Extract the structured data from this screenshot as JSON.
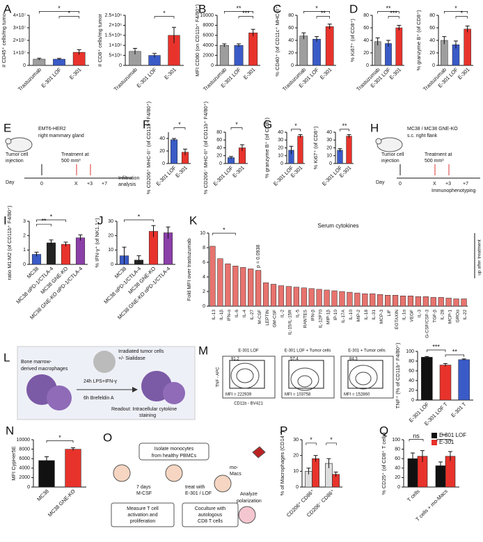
{
  "chart_data": [
    {
      "type": "bar",
      "panel": "A",
      "ylabel": "# CD45⁺ cells/mg tumo",
      "categories": [
        "Trastuzumab",
        "E-301 LOF",
        "E-301"
      ],
      "colors": [
        "#9e9e9e",
        "#3a5bc7",
        "#e8332c"
      ],
      "values": [
        5000000,
        5000000,
        10500000
      ],
      "errors": [
        700000,
        600000,
        2000000
      ],
      "ylim": [
        0,
        40000000
      ],
      "yticks": [
        0,
        {
          "value": 10000000,
          "label": "1×10⁷"
        },
        {
          "value": 20000000,
          "label": "2×10⁷"
        },
        {
          "value": 30000000,
          "label": "3×10⁷"
        },
        {
          "value": 40000000,
          "label": "4×10⁷"
        }
      ],
      "significance": [
        "*",
        "*"
      ]
    },
    {
      "type": "bar",
      "ylabel": "# CD8⁺ cells/mg tumor",
      "categories": [
        "Trastuzumab",
        "E-301 LOF",
        "E-301"
      ],
      "colors": [
        "#9e9e9e",
        "#3a5bc7",
        "#e8332c"
      ],
      "values": [
        700000,
        500000,
        1500000
      ],
      "errors": [
        150000,
        100000,
        400000
      ],
      "ylim": [
        0,
        2500000
      ],
      "yticks": [
        0,
        {
          "value": 500000,
          "label": "5×10⁵"
        },
        {
          "value": 1000000,
          "label": "1×10⁶"
        },
        {
          "value": 1500000,
          "label": "1.5×10⁶"
        },
        {
          "value": 2000000,
          "label": "2×10⁶"
        },
        {
          "value": 2500000,
          "label": "2.5×10⁶"
        }
      ],
      "significance": [
        "*"
      ]
    },
    {
      "type": "bar",
      "panel": "B",
      "ylabel": "MFI CD80 (on CD11b⁺ F4/80⁺)",
      "categories": [
        "Trastuzumab",
        "E-301 LOF",
        "E-301"
      ],
      "colors": [
        "#9e9e9e",
        "#3a5bc7",
        "#e8332c"
      ],
      "values": [
        4000,
        4000,
        6500
      ],
      "errors": [
        300,
        300,
        700
      ],
      "ylim": [
        0,
        10000
      ],
      "yticks": [
        0,
        2000,
        4000,
        6000,
        8000,
        10000
      ],
      "significance": [
        "**",
        "***"
      ]
    },
    {
      "type": "bar",
      "panel": "C",
      "ylabel": "% CD40⁺ (of CD11c⁺ MHC-II⁺)",
      "categories": [
        "Trastuzumab",
        "E-301 LOF",
        "E-301"
      ],
      "colors": [
        "#9e9e9e",
        "#3a5bc7",
        "#e8332c"
      ],
      "values": [
        47,
        42,
        62
      ],
      "errors": [
        5,
        4,
        4
      ],
      "ylim": [
        0,
        80
      ],
      "yticks": [
        0,
        20,
        40,
        60,
        80
      ],
      "significance": [
        "*",
        "**"
      ]
    },
    {
      "type": "bar",
      "panel": "D",
      "ylabel": "% Ki67⁺ (of CD8⁺)",
      "categories": [
        "Trastuzumab",
        "E-301 LOF",
        "E-301"
      ],
      "colors": [
        "#9e9e9e",
        "#3a5bc7",
        "#e8332c"
      ],
      "values": [
        38,
        35,
        60
      ],
      "errors": [
        6,
        5,
        4
      ],
      "ylim": [
        0,
        80
      ],
      "yticks": [
        0,
        20,
        40,
        60,
        80
      ],
      "significance": [
        "**",
        "***"
      ]
    },
    {
      "type": "bar",
      "ylabel": "% granzyme B⁺ (of CD8⁺)",
      "categories": [
        "Trastuzumab",
        "E-301 LOF",
        "E-301"
      ],
      "colors": [
        "#9e9e9e",
        "#3a5bc7",
        "#e8332c"
      ],
      "values": [
        40,
        33,
        58
      ],
      "errors": [
        6,
        6,
        5
      ],
      "ylim": [
        0,
        80
      ],
      "yticks": [
        0,
        20,
        40,
        60,
        80
      ],
      "significance": [
        "*",
        "*"
      ]
    },
    {
      "type": "bar",
      "panel": "F",
      "ylabel": "% CD206⁺ MHC-II⁻ (of CD11b⁺ F4/80⁺)",
      "categories": [
        "E-301 LOF",
        "E-301"
      ],
      "colors": [
        "#3a5bc7",
        "#e8332c"
      ],
      "values": [
        38,
        18
      ],
      "errors": [
        2,
        5
      ],
      "ylim": [
        0,
        50
      ],
      "yticks": [
        0,
        20,
        40
      ],
      "significance": [
        "*"
      ]
    },
    {
      "type": "bar",
      "ylabel": "% CD206⁻ MHC-II⁺ (of CD11b⁺ F4/80⁺)",
      "categories": [
        "E-301 LOF",
        "E-301"
      ],
      "colors": [
        "#3a5bc7",
        "#e8332c"
      ],
      "values": [
        15,
        40
      ],
      "errors": [
        3,
        8
      ],
      "ylim": [
        0,
        80
      ],
      "yticks": [
        0,
        20,
        40,
        60,
        80
      ],
      "significance": [
        "*"
      ]
    },
    {
      "type": "bar",
      "panel": "G",
      "ylabel": "% granzyme B⁺ (of CD8⁺)",
      "categories": [
        "E-301 LOF",
        "E-301"
      ],
      "colors": [
        "#3a5bc7",
        "#e8332c"
      ],
      "values": [
        17,
        35
      ],
      "errors": [
        5,
        2
      ],
      "ylim": [
        0,
        40
      ],
      "yticks": [
        0,
        10,
        20,
        30,
        40
      ],
      "significance": [
        "*"
      ]
    },
    {
      "type": "bar",
      "ylabel": "% Ki67⁺ (of CD8⁺)",
      "categories": [
        "E-301 LOF",
        "E-301"
      ],
      "colors": [
        "#3a5bc7",
        "#e8332c"
      ],
      "values": [
        17,
        35
      ],
      "errors": [
        2,
        2
      ],
      "ylim": [
        0,
        40
      ],
      "yticks": [
        0,
        10,
        20,
        30,
        40
      ],
      "significance": [
        "**"
      ]
    },
    {
      "type": "bar",
      "panel": "I",
      "ylabel": "ratio M1:M2 (of CD11b⁺ F4/80⁺)",
      "categories": [
        "MC38",
        "MC38 αPD-1/CTLA-4",
        "MC38 GNE-KO",
        "MC38 GNE-KO αPD-1/CTLA-4"
      ],
      "colors": [
        "#3a5bc7",
        "#222222",
        "#e8332c",
        "#8b3fa8"
      ],
      "values": [
        0.7,
        1.5,
        1.4,
        1.85
      ],
      "errors": [
        0.15,
        0.2,
        0.15,
        0.2
      ],
      "ylim": [
        0,
        3
      ],
      "yticks": [
        0,
        1,
        2,
        3
      ],
      "significance": [
        "**",
        "*"
      ]
    },
    {
      "type": "bar",
      "panel": "J",
      "ylabel": "% IFN-γ⁺ (of NK1.1⁺)",
      "categories": [
        "MC38",
        "MC38 αPD-1/CTLA-4",
        "MC38 GNE-KO",
        "MC38 GNE-KO αPD-1/CTLA-4"
      ],
      "colors": [
        "#3a5bc7",
        "#222222",
        "#e8332c",
        "#8b3fa8"
      ],
      "values": [
        6,
        3,
        23,
        22
      ],
      "errors": [
        6,
        3,
        4,
        4
      ],
      "ylim": [
        0,
        30
      ],
      "yticks": [
        0,
        10,
        20,
        30
      ],
      "significance": [
        "*"
      ]
    },
    {
      "type": "bar",
      "panel": "K",
      "title": "Serum cytokines",
      "ylabel": "Fold MFI over trastuzumab",
      "note": "p = 0.0938",
      "side_note": "up after treatment",
      "categories": [
        "IL-13",
        "IL-1β",
        "IFN-α",
        "IL-6",
        "IL-4",
        "IL-27",
        "M-CSF",
        "LEPTIN",
        "GM-CSF",
        "IL-2",
        "IL-15/IL-15R",
        "IL-5",
        "RANTES",
        "IFN-β",
        "IL-12P70",
        "MIP-1β",
        "IP-10",
        "IL-17A",
        "IL-10",
        "MIP-2",
        "IL-18",
        "IL-31",
        "MCP-3",
        "LIF",
        "EOTAXIN",
        "IL-1α",
        "VEGF",
        "IL-3",
        "G-CSF/CSF-3",
        "TGF-β",
        "IL-28",
        "MCP-1",
        "GROα",
        "IL-22"
      ],
      "color": "#e8736e",
      "values": [
        8.2,
        6.5,
        5.8,
        5.5,
        5.3,
        5.1,
        4.9,
        3.2,
        3,
        2.8,
        2.7,
        2.6,
        2.5,
        2.4,
        2.3,
        2.2,
        2.1,
        2,
        1.9,
        1.8,
        1.7,
        1.7,
        1.6,
        1.5,
        1.5,
        1.4,
        1.4,
        1.3,
        1.3,
        1.2,
        1.2,
        1.1,
        1,
        1
      ],
      "ylim": [
        0,
        10
      ],
      "yticks": [
        0,
        2,
        4,
        6,
        8,
        10
      ],
      "significance": [
        "*"
      ]
    },
    {
      "type": "bar",
      "panel": "M",
      "ylabel": "TNF⁺ (% of CD11b⁺ F4/80⁺)",
      "categories": [
        "E-301 LOF",
        "E-301 LOF T",
        "E-301 T"
      ],
      "colors": [
        "#111111",
        "#e8332c",
        "#3a5bc7"
      ],
      "values": [
        88,
        72,
        83
      ],
      "errors": [
        1.5,
        3,
        1.5
      ],
      "ylim": [
        0,
        100
      ],
      "yticks": [
        0,
        20,
        40,
        60,
        80,
        100
      ],
      "significance": [
        "***",
        "**"
      ]
    },
    {
      "type": "bar",
      "panel": "N",
      "ylabel": "MFI CypHer5E",
      "categories": [
        "MC38",
        "MC38 GNE-KO"
      ],
      "colors": [
        "#111111",
        "#e8332c"
      ],
      "values": [
        5600,
        8000
      ],
      "errors": [
        800,
        300
      ],
      "ylim": [
        0,
        10000
      ],
      "yticks": [
        0,
        2000,
        4000,
        6000,
        8000,
        10000
      ],
      "significance": [
        "*"
      ]
    },
    {
      "type": "bar",
      "panel": "P",
      "ylabel": "% of Macrophages (CD14⁺)",
      "categories": [
        "CD206⁺ CD86⁺",
        "CD206⁻ CD86⁺"
      ],
      "series": [
        {
          "color": "#dddddd",
          "values": [
            10,
            15
          ]
        },
        {
          "color": "#e8332c",
          "values": [
            18,
            8
          ]
        }
      ],
      "errors": [
        [
          2,
          3
        ],
        [
          2,
          1.5
        ]
      ],
      "ylim": [
        0,
        30
      ],
      "yticks": [
        0,
        10,
        20,
        30
      ],
      "significance": [
        "*",
        "*"
      ]
    },
    {
      "type": "bar",
      "panel": "Q",
      "ylabel": "% CD25⁺ (of CD8⁺ T cells)",
      "categories": [
        "T cells",
        "T cells + mo-Macs"
      ],
      "series": [
        {
          "name": "E-301 LOF",
          "color": "#111111",
          "values": [
            60,
            45
          ]
        },
        {
          "name": "E-301",
          "color": "#e8332c",
          "values": [
            65,
            65
          ]
        }
      ],
      "errors": [
        [
          12,
          8
        ],
        [
          12,
          10
        ]
      ],
      "ylim": [
        0,
        100
      ],
      "yticks": [
        0,
        20,
        40,
        60,
        80,
        100
      ],
      "significance": [
        "ns",
        "**"
      ]
    }
  ],
  "flow": {
    "x_label": "CD11b - BV421",
    "y_label": "TNF - APC",
    "plots": [
      {
        "title": "E-301 LOF",
        "gate": "91.2",
        "mfi": "MFI = 222939"
      },
      {
        "title": "E-301 LOF + Tumor cells",
        "gate": "57.4",
        "mfi": "MFI = 103758"
      },
      {
        "title": "E-301 + Tumor cells",
        "gate": "84.3",
        "mfi": "MFI = 152860"
      }
    ]
  },
  "diagrams": [
    {
      "panel": "E",
      "texts": [
        "EMT6-HER2",
        "right mammary gland",
        "Tumor cell",
        "injection",
        "Treatment at",
        "500 mm³",
        "Day",
        "0",
        "X",
        "+3",
        "+7",
        "Infiltration",
        "analysis"
      ]
    },
    {
      "panel": "H",
      "texts": [
        "MC38 / MC38 GNE-KO",
        "s.c. right flank",
        "Tumor cell",
        "injection",
        "Treatment at",
        "500 mm³",
        "Day",
        "0",
        "X",
        "+3",
        "+7",
        "Immunophenotyping"
      ]
    },
    {
      "panel": "L",
      "texts": [
        "Irradiated tumor cells",
        "+/- Sialidase",
        "Bone marrow-",
        "derived macrophages",
        "24h LPS+IFN-γ",
        "6h Brefeldin A",
        "Readout: Intracellular cytokine",
        "staining"
      ]
    },
    {
      "panel": "O",
      "texts": [
        "Isolate monocytes",
        "from healthy PBMCs",
        "7 days",
        "M-CSF",
        "treat with",
        "E-301 / LOF",
        "mo-",
        "Macs",
        "Analyze",
        "polarization",
        "Measure T cell",
        "activation and",
        "proliferation",
        "Coculture with",
        "autologous",
        "CD8 T cells"
      ]
    }
  ]
}
